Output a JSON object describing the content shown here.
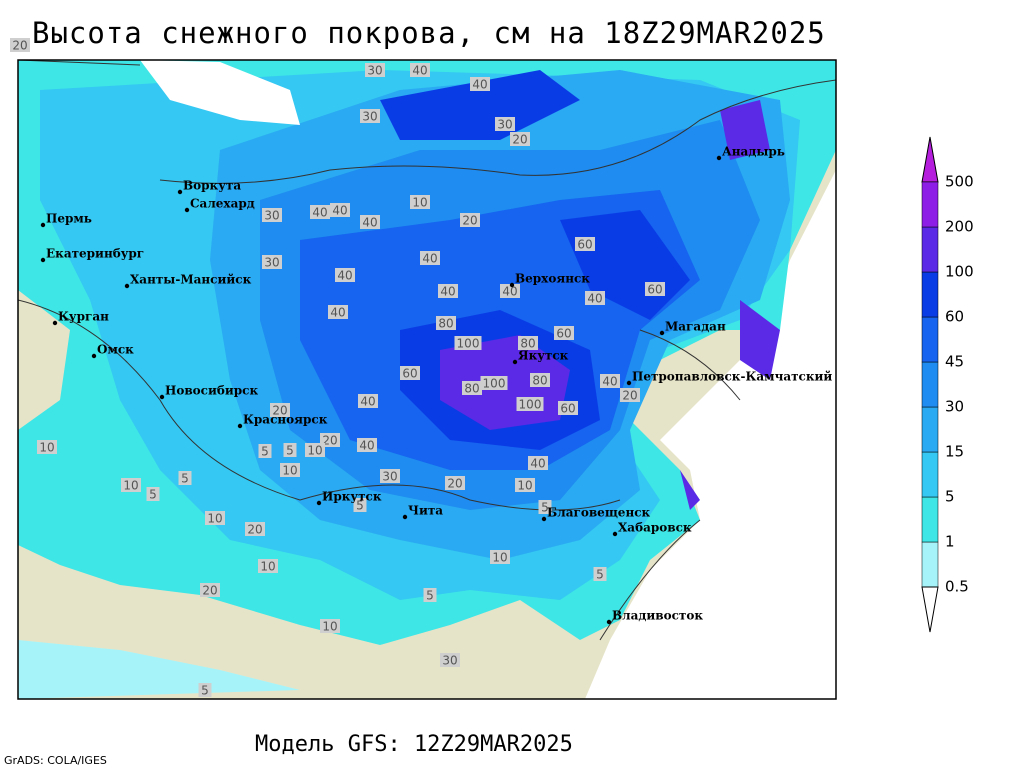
{
  "title": "Высота снежного покрова, см на 18Z29MAR2025",
  "subtitle": "Модель GFS: 12Z29MAR2025",
  "credit": "GrADS: COLA/IGES",
  "colorbar": {
    "levels": [
      0.5,
      1,
      5,
      15,
      30,
      45,
      60,
      100,
      200,
      500
    ],
    "colors": [
      "#ffffff",
      "#a6f4fa",
      "#3ee6e6",
      "#34c8f2",
      "#2aaaf2",
      "#1e8cf0",
      "#1664f0",
      "#0a3ce6",
      "#5a2ae6",
      "#8c1ee6",
      "#b41edc"
    ]
  },
  "cities": [
    "Воркута",
    "Салехард",
    "Пермь",
    "Екатеринбург",
    "Ханты-Мансийск",
    "Курган",
    "Омск",
    "Новосибирск",
    "Красноярск",
    "Иркутск",
    "Чита",
    "Верхоянск",
    "Якутск",
    "Анадырь",
    "Магадан",
    "Петропавловск-Камчатский",
    "Благовещенск",
    "Хабаровск",
    "Владивосток"
  ],
  "contour_labels": [
    30,
    40,
    40,
    30,
    30,
    20,
    40,
    10,
    30,
    40,
    40,
    40,
    40,
    20,
    30,
    60,
    40,
    40,
    40,
    40,
    60,
    80,
    100,
    80,
    60,
    60,
    80,
    100,
    100,
    80,
    40,
    40,
    60,
    40,
    20,
    10,
    5,
    5,
    10,
    20,
    20,
    10,
    10,
    5,
    5,
    10,
    20,
    10,
    30,
    20,
    10,
    5,
    5,
    10,
    5,
    5,
    20,
    10,
    30,
    5,
    40,
    20
  ]
}
